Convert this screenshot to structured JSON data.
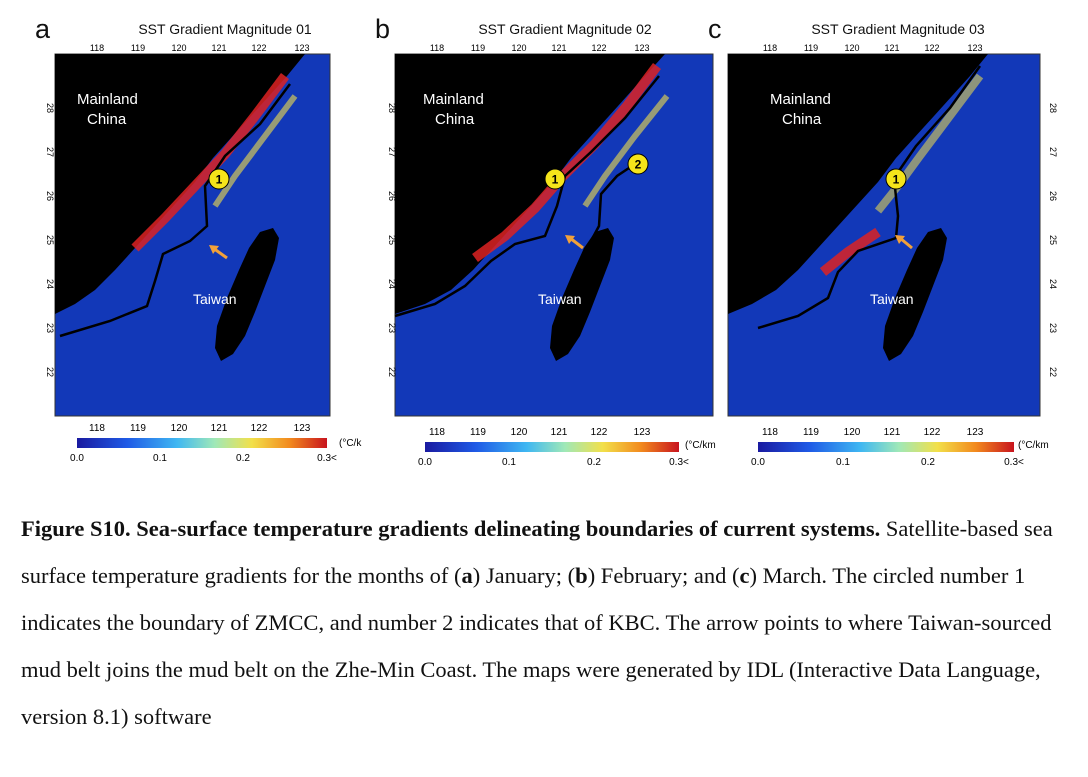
{
  "panels": [
    {
      "letter": "a",
      "title": "SST Gradient Magnitude 01",
      "mainland_label": [
        "Mainland",
        "China"
      ],
      "taiwan_label": "Taiwan",
      "markers": [
        "1"
      ],
      "unit": "(°C/k"
    },
    {
      "letter": "b",
      "title": "SST Gradient Magnitude 02",
      "mainland_label": [
        "Mainland",
        "China"
      ],
      "taiwan_label": "Taiwan",
      "markers": [
        "1",
        "2"
      ],
      "unit": "(°C/km"
    },
    {
      "letter": "c",
      "title": "SST Gradient Magnitude 03",
      "mainland_label": [
        "Mainland",
        "China"
      ],
      "taiwan_label": "Taiwan",
      "markers": [
        "1"
      ],
      "unit": "(°C/km"
    }
  ],
  "longitude_ticks": [
    "118",
    "119",
    "120",
    "121",
    "122",
    "123"
  ],
  "latitude_ticks": [
    "28",
    "27",
    "26",
    "25",
    "24",
    "23",
    "22"
  ],
  "colorbar": {
    "ticks": [
      "0.0",
      "0.1",
      "0.2",
      "0.3<"
    ],
    "colors": [
      "#1a1aa0",
      "#1f5ae6",
      "#3fb7f2",
      "#9fe8b8",
      "#f2e04a",
      "#f28a1e",
      "#c8141e"
    ]
  },
  "colors": {
    "land": "#000000",
    "sea": "#1238b8",
    "boundary_line": "#000000",
    "marker_fill": "#f5e41a",
    "arrow": "#f2a13a"
  },
  "caption": {
    "title": "Figure S10. Sea-surface temperature gradients delineating boundaries of current systems.",
    "text_1": " Satellite-based sea surface temperature gradients for the months of (",
    "a": "a",
    "text_2": ") January; (",
    "b": "b",
    "text_3": ") February; and (",
    "c": "c",
    "text_4": ") March. The circled number 1 indicates the boundary of ZMCC, and number 2 indicates that of KBC. The arrow points to where Taiwan-sourced mud belt joins the mud belt on the Zhe-Min Coast. The maps were generated by IDL (Interactive Data Language, version 8.1) software"
  }
}
